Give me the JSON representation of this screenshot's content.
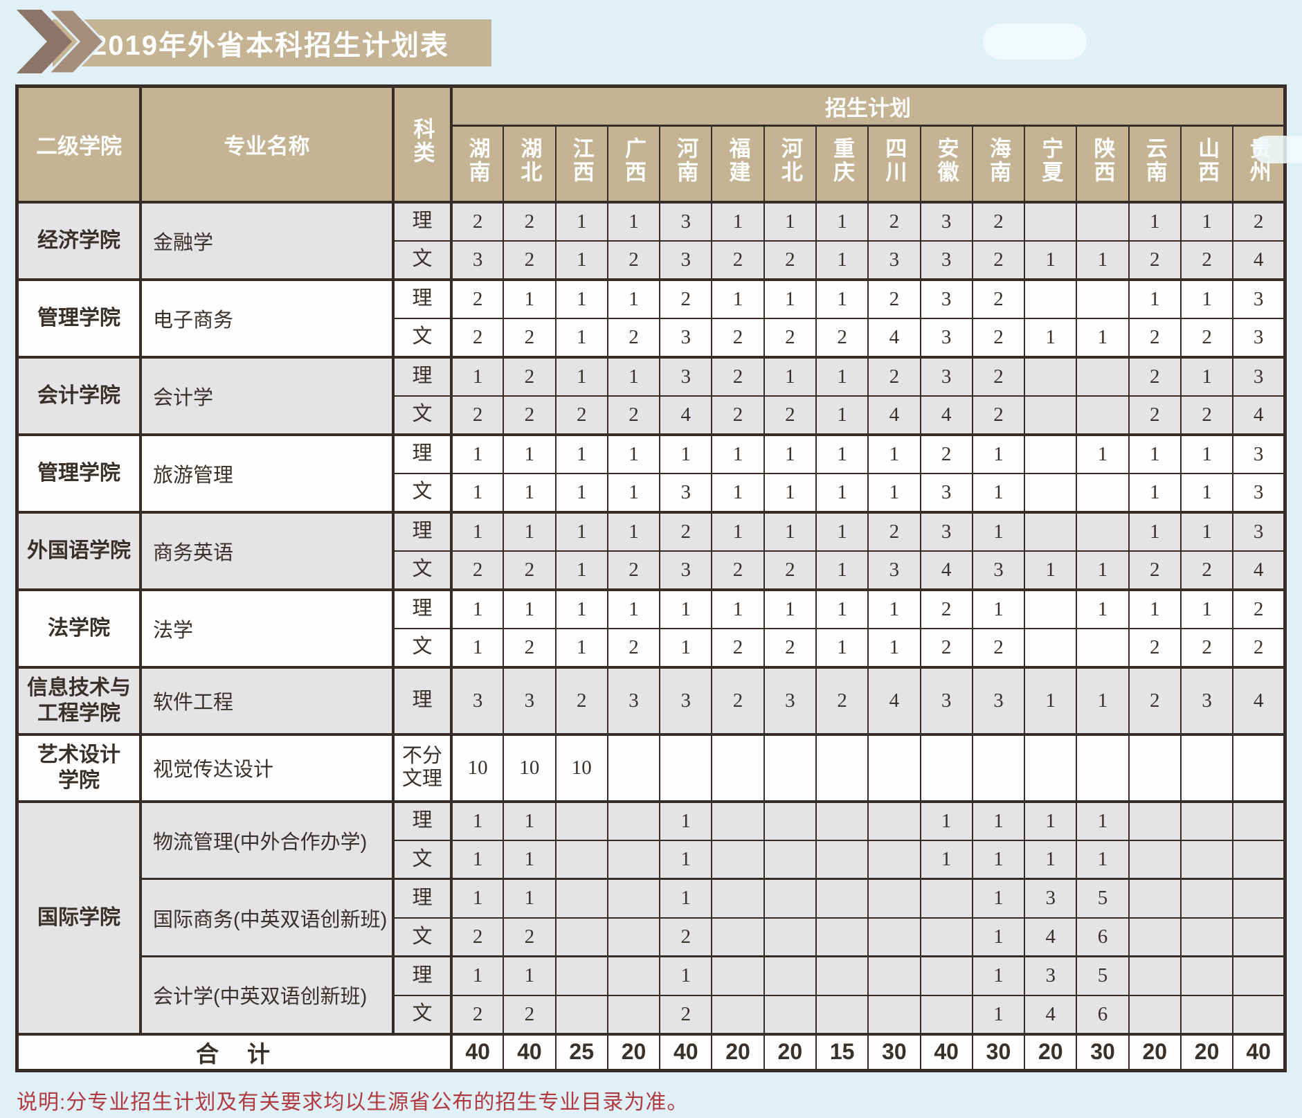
{
  "page": {
    "title": "2019年外省本科招生计划表",
    "note": "说明:分专业招生计划及有关要求均以生源省公布的招生专业目录为准。"
  },
  "colors": {
    "page_bg": "#e0f0f7",
    "band_tan": "#c4b494",
    "border_dark": "#372c26",
    "row_gray": "#e4e3e6",
    "row_white": "#fdfdfd",
    "note_red": "#b13a40",
    "chevron_dark": "#8c7466",
    "chevron_light": "#a68e7d"
  },
  "table": {
    "headers": {
      "college": "二级学院",
      "major": "专业名称",
      "subject": "科类",
      "plan": "招生计划"
    },
    "provinces": [
      "湖南",
      "湖北",
      "江西",
      "广西",
      "河南",
      "福建",
      "河北",
      "重庆",
      "四川",
      "安徽",
      "海南",
      "宁夏",
      "陕西",
      "云南",
      "山西",
      "贵州"
    ],
    "groups": [
      {
        "college": [
          "经济学院"
        ],
        "shade": "gray",
        "majors": [
          {
            "name": "金融学",
            "rows": [
              {
                "subject": "理",
                "values": [
                  "2",
                  "2",
                  "1",
                  "1",
                  "3",
                  "1",
                  "1",
                  "1",
                  "2",
                  "3",
                  "2",
                  "",
                  "",
                  "1",
                  "1",
                  "2"
                ]
              },
              {
                "subject": "文",
                "values": [
                  "3",
                  "2",
                  "1",
                  "2",
                  "3",
                  "2",
                  "2",
                  "1",
                  "3",
                  "3",
                  "2",
                  "1",
                  "1",
                  "2",
                  "2",
                  "4"
                ]
              }
            ]
          }
        ]
      },
      {
        "college": [
          "管理学院"
        ],
        "shade": "white",
        "majors": [
          {
            "name": "电子商务",
            "rows": [
              {
                "subject": "理",
                "values": [
                  "2",
                  "1",
                  "1",
                  "1",
                  "2",
                  "1",
                  "1",
                  "1",
                  "2",
                  "3",
                  "2",
                  "",
                  "",
                  "1",
                  "1",
                  "3"
                ]
              },
              {
                "subject": "文",
                "values": [
                  "2",
                  "2",
                  "1",
                  "2",
                  "3",
                  "2",
                  "2",
                  "2",
                  "4",
                  "3",
                  "2",
                  "1",
                  "1",
                  "2",
                  "2",
                  "3"
                ]
              }
            ]
          }
        ]
      },
      {
        "college": [
          "会计学院"
        ],
        "shade": "gray",
        "majors": [
          {
            "name": "会计学",
            "rows": [
              {
                "subject": "理",
                "values": [
                  "1",
                  "2",
                  "1",
                  "1",
                  "3",
                  "2",
                  "1",
                  "1",
                  "2",
                  "3",
                  "2",
                  "",
                  "",
                  "2",
                  "1",
                  "3"
                ]
              },
              {
                "subject": "文",
                "values": [
                  "2",
                  "2",
                  "2",
                  "2",
                  "4",
                  "2",
                  "2",
                  "1",
                  "4",
                  "4",
                  "2",
                  "",
                  "",
                  "2",
                  "2",
                  "4"
                ]
              }
            ]
          }
        ]
      },
      {
        "college": [
          "管理学院"
        ],
        "shade": "white",
        "majors": [
          {
            "name": "旅游管理",
            "rows": [
              {
                "subject": "理",
                "values": [
                  "1",
                  "1",
                  "1",
                  "1",
                  "1",
                  "1",
                  "1",
                  "1",
                  "1",
                  "2",
                  "1",
                  "",
                  "1",
                  "1",
                  "1",
                  "3"
                ]
              },
              {
                "subject": "文",
                "values": [
                  "1",
                  "1",
                  "1",
                  "1",
                  "3",
                  "1",
                  "1",
                  "1",
                  "1",
                  "3",
                  "1",
                  "",
                  "",
                  "1",
                  "1",
                  "3"
                ]
              }
            ]
          }
        ]
      },
      {
        "college": [
          "外国语学院"
        ],
        "shade": "gray",
        "majors": [
          {
            "name": "商务英语",
            "rows": [
              {
                "subject": "理",
                "values": [
                  "1",
                  "1",
                  "1",
                  "1",
                  "2",
                  "1",
                  "1",
                  "1",
                  "2",
                  "3",
                  "1",
                  "",
                  "",
                  "1",
                  "1",
                  "3"
                ]
              },
              {
                "subject": "文",
                "values": [
                  "2",
                  "2",
                  "1",
                  "2",
                  "3",
                  "2",
                  "2",
                  "1",
                  "3",
                  "4",
                  "3",
                  "1",
                  "1",
                  "2",
                  "2",
                  "4"
                ]
              }
            ]
          }
        ]
      },
      {
        "college": [
          "法学院"
        ],
        "shade": "white",
        "majors": [
          {
            "name": "法学",
            "rows": [
              {
                "subject": "理",
                "values": [
                  "1",
                  "1",
                  "1",
                  "1",
                  "1",
                  "1",
                  "1",
                  "1",
                  "1",
                  "2",
                  "1",
                  "",
                  "1",
                  "1",
                  "1",
                  "2"
                ]
              },
              {
                "subject": "文",
                "values": [
                  "1",
                  "2",
                  "1",
                  "2",
                  "1",
                  "2",
                  "2",
                  "1",
                  "1",
                  "2",
                  "2",
                  "",
                  "",
                  "2",
                  "2",
                  "2"
                ]
              }
            ]
          }
        ]
      },
      {
        "college": [
          "信息技术与",
          "工程学院"
        ],
        "shade": "gray",
        "tall": true,
        "majors": [
          {
            "name": "软件工程",
            "rows": [
              {
                "subject": "理",
                "values": [
                  "3",
                  "3",
                  "2",
                  "3",
                  "3",
                  "2",
                  "3",
                  "2",
                  "4",
                  "3",
                  "3",
                  "1",
                  "1",
                  "2",
                  "3",
                  "4"
                ]
              }
            ]
          }
        ]
      },
      {
        "college": [
          "艺术设计",
          "学院"
        ],
        "shade": "white",
        "tall": true,
        "majors": [
          {
            "name": "视觉传达设计",
            "rows": [
              {
                "subject": "不分文理",
                "values": [
                  "10",
                  "10",
                  "10",
                  "",
                  "",
                  "",
                  "",
                  "",
                  "",
                  "",
                  "",
                  "",
                  "",
                  "",
                  "",
                  ""
                ]
              }
            ]
          }
        ]
      },
      {
        "college": [
          "国际学院"
        ],
        "shade": "gray",
        "majors": [
          {
            "name": "物流管理(中外合作办学)",
            "rows": [
              {
                "subject": "理",
                "values": [
                  "1",
                  "1",
                  "",
                  "",
                  "1",
                  "",
                  "",
                  "",
                  "",
                  "1",
                  "1",
                  "1",
                  "1",
                  "",
                  "",
                  ""
                ]
              },
              {
                "subject": "文",
                "values": [
                  "1",
                  "1",
                  "",
                  "",
                  "1",
                  "",
                  "",
                  "",
                  "",
                  "1",
                  "1",
                  "1",
                  "1",
                  "",
                  "",
                  ""
                ]
              }
            ]
          },
          {
            "name": "国际商务(中英双语创新班)",
            "rows": [
              {
                "subject": "理",
                "values": [
                  "1",
                  "1",
                  "",
                  "",
                  "1",
                  "",
                  "",
                  "",
                  "",
                  "",
                  "1",
                  "3",
                  "5",
                  "",
                  "",
                  ""
                ]
              },
              {
                "subject": "文",
                "values": [
                  "2",
                  "2",
                  "",
                  "",
                  "2",
                  "",
                  "",
                  "",
                  "",
                  "",
                  "1",
                  "4",
                  "6",
                  "",
                  "",
                  ""
                ]
              }
            ]
          },
          {
            "name": "会计学(中英双语创新班)",
            "rows": [
              {
                "subject": "理",
                "values": [
                  "1",
                  "1",
                  "",
                  "",
                  "1",
                  "",
                  "",
                  "",
                  "",
                  "",
                  "1",
                  "3",
                  "5",
                  "",
                  "",
                  ""
                ]
              },
              {
                "subject": "文",
                "values": [
                  "2",
                  "2",
                  "",
                  "",
                  "2",
                  "",
                  "",
                  "",
                  "",
                  "",
                  "1",
                  "4",
                  "6",
                  "",
                  "",
                  ""
                ]
              }
            ]
          }
        ]
      }
    ],
    "total": {
      "label": "合　计",
      "values": [
        "40",
        "40",
        "25",
        "20",
        "40",
        "20",
        "20",
        "15",
        "30",
        "40",
        "30",
        "20",
        "30",
        "20",
        "20",
        "40"
      ]
    }
  }
}
